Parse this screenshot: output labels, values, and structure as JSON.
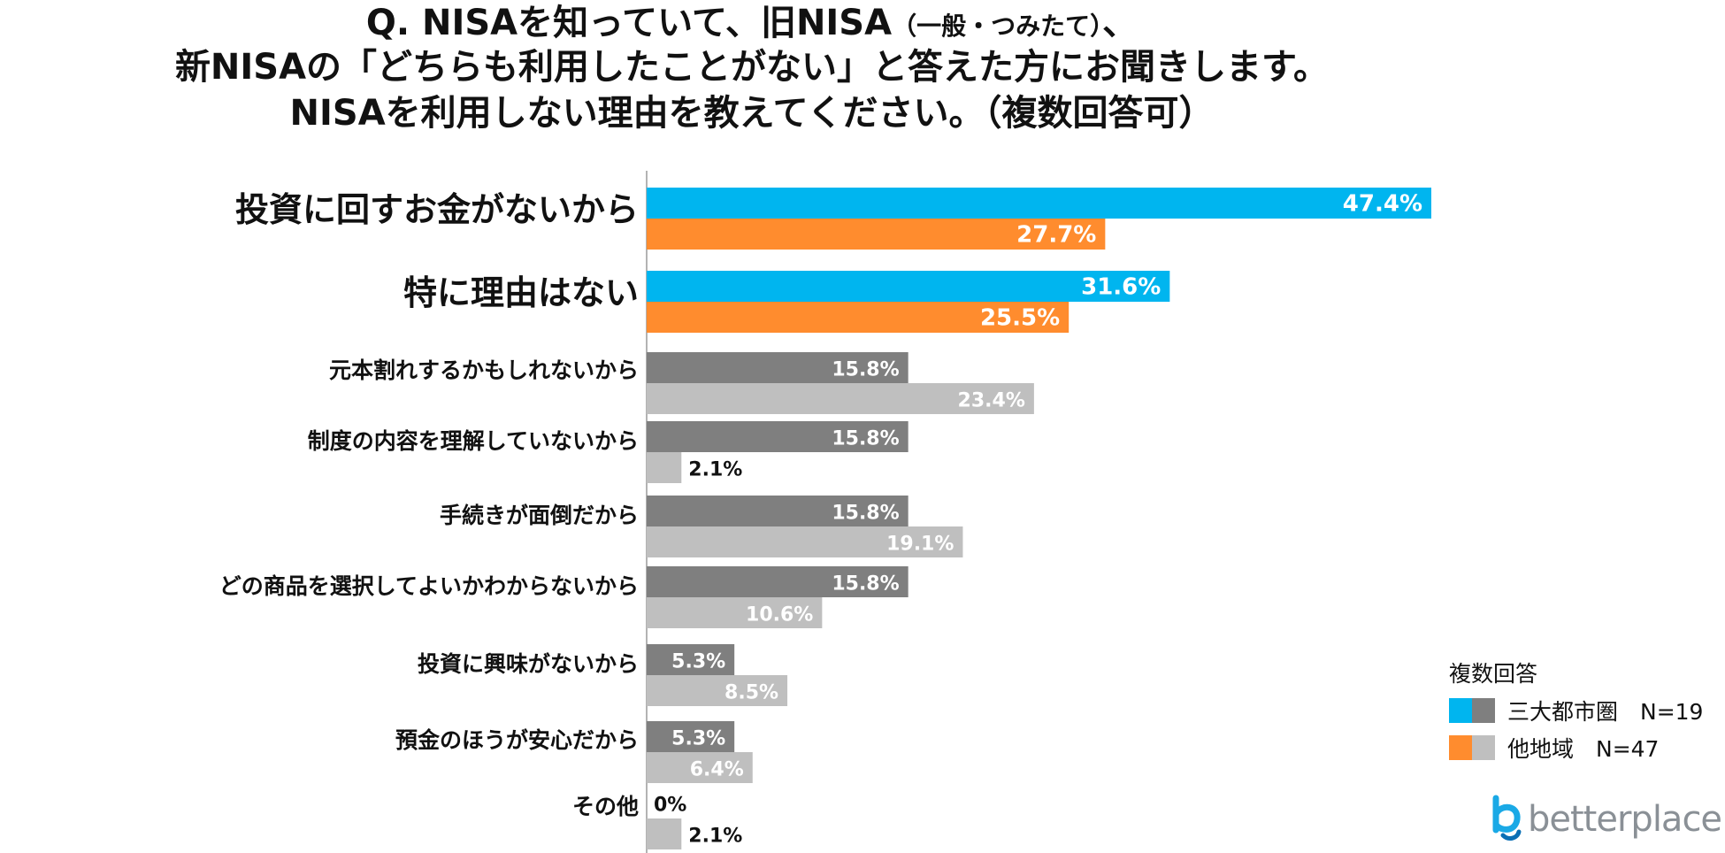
{
  "title": {
    "line1_main": "Q. NISAを知っていて、旧NISA",
    "line1_small": "（一般・つみたて）",
    "line1_end": "、",
    "line2": "新NISAの「どちらも利用したことがない」と答えた方にお聞きします。",
    "line3": "NISAを利用しない理由を教えてください。（複数回答可）"
  },
  "colors": {
    "highlight_a": "#00b5ef",
    "highlight_b": "#ff8c2e",
    "normal_a": "#7f7f7f",
    "normal_b": "#bfbfbf"
  },
  "chart_data": {
    "type": "bar",
    "orientation": "horizontal",
    "categories": [
      "投資に回すお金がないから",
      "特に理由はない",
      "元本割れするかもしれないから",
      "制度の内容を理解していないから",
      "手続きが面倒だから",
      "どの商品を選択してよいかわからないから",
      "投資に興味がないから",
      "預金のほうが安心だから",
      "その他"
    ],
    "highlighted_categories": [
      0,
      1
    ],
    "series": [
      {
        "name": "三大都市圏　N=19",
        "values": [
          47.4,
          31.6,
          15.8,
          15.8,
          15.8,
          15.8,
          5.3,
          5.3,
          0
        ]
      },
      {
        "name": "他地域　N=47",
        "values": [
          27.7,
          25.5,
          23.4,
          2.1,
          19.1,
          10.6,
          8.5,
          6.4,
          2.1
        ]
      }
    ],
    "value_labels": {
      "series_a": [
        "47.4%",
        "31.6%",
        "15.8%",
        "15.8%",
        "15.8%",
        "15.8%",
        "5.3%",
        "5.3%",
        "0%"
      ],
      "series_b": [
        "27.7%",
        "25.5%",
        "23.4%",
        "2.1%",
        "19.1%",
        "10.6%",
        "8.5%",
        "6.4%",
        "2.1%"
      ]
    },
    "unit": "%",
    "xlim": [
      0,
      50
    ],
    "grid": false,
    "legend_position": "bottom-right"
  },
  "legend": {
    "title": "複数回答",
    "items": [
      "三大都市圏　N=19",
      "他地域　N=47"
    ]
  },
  "logo": {
    "text": "betterplace"
  }
}
